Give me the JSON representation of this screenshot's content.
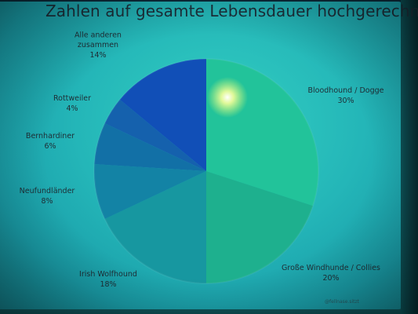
{
  "chart_data": {
    "type": "pie",
    "title": "Zahlen auf gesamte Lebensdauer hochgerechnet",
    "slices": [
      {
        "label": "Bloodhound / Dogge",
        "value": 30,
        "value_label": "30%",
        "color": "#22c39a"
      },
      {
        "label": "Große Windhunde / Collies",
        "value": 20,
        "value_label": "20%",
        "color": "#1eb08e"
      },
      {
        "label": "Irish Wolfhound",
        "value": 18,
        "value_label": "18%",
        "color": "#1797a0"
      },
      {
        "label": "Neufundländer",
        "value": 8,
        "value_label": "8%",
        "color": "#1383a5"
      },
      {
        "label": "Bernhardiner",
        "value": 6,
        "value_label": "6%",
        "color": "#1270a6"
      },
      {
        "label": "Rottweiler",
        "value": 4,
        "value_label": "4%",
        "color": "#1561ad"
      },
      {
        "label": "Alle anderen zusammen",
        "value_label": "14%",
        "value": 14,
        "color": "#114fb7",
        "label_lines": [
          "Alle anderen",
          "zusammen"
        ]
      }
    ],
    "start_angle_deg": 0,
    "direction": "clockwise",
    "legend": "none"
  },
  "credit": "@fellnase.sitzt"
}
